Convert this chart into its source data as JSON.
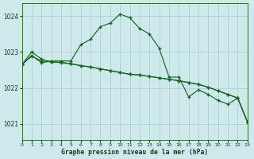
{
  "xlabel": "Graphe pression niveau de la mer (hPa)",
  "xlim": [
    0,
    23
  ],
  "ylim": [
    1020.55,
    1024.35
  ],
  "yticks": [
    1021,
    1022,
    1023,
    1024
  ],
  "xtick_labels": [
    "0",
    "1",
    "2",
    "3",
    "4",
    "5",
    "6",
    "7",
    "8",
    "9",
    "10",
    "11",
    "12",
    "13",
    "14",
    "15",
    "16",
    "17",
    "18",
    "19",
    "20",
    "21",
    "22",
    "23"
  ],
  "background_color": "#cde9ec",
  "grid_color": "#aacdd2",
  "line_color": "#1a6622",
  "s1_x": [
    0,
    1,
    2,
    3,
    4,
    5,
    6,
    7,
    8,
    9,
    10,
    11,
    12,
    13,
    14,
    15,
    16,
    17,
    18,
    19,
    20,
    21,
    22,
    23
  ],
  "s1_y": [
    1022.65,
    1022.9,
    1022.7,
    1022.75,
    1022.75,
    1022.75,
    1023.2,
    1023.35,
    1023.7,
    1023.8,
    1024.05,
    1023.95,
    1023.65,
    1023.5,
    1023.1,
    1022.3,
    1022.3,
    1021.75,
    1021.95,
    1021.82,
    1021.65,
    1021.55,
    1021.72,
    1021.05
  ],
  "s2_x": [
    0,
    1,
    2,
    3,
    4,
    5,
    6,
    7,
    8,
    9,
    10,
    11,
    12,
    13,
    14,
    15,
    16,
    17,
    18,
    19,
    20,
    21,
    22,
    23
  ],
  "s2_y": [
    1022.65,
    1022.88,
    1022.75,
    1022.72,
    1022.7,
    1022.67,
    1022.62,
    1022.58,
    1022.53,
    1022.48,
    1022.43,
    1022.38,
    1022.36,
    1022.32,
    1022.28,
    1022.24,
    1022.2,
    1022.15,
    1022.1,
    1022.02,
    1021.92,
    1021.82,
    1021.72,
    1021.05
  ],
  "s3_x": [
    0,
    1,
    2,
    3,
    4,
    5,
    6,
    7,
    8,
    9,
    10,
    11,
    12,
    13,
    14,
    15,
    16,
    17,
    18,
    19,
    20,
    21,
    22,
    23
  ],
  "s3_y": [
    1022.65,
    1023.0,
    1022.8,
    1022.72,
    1022.72,
    1022.67,
    1022.62,
    1022.58,
    1022.53,
    1022.48,
    1022.43,
    1022.38,
    1022.36,
    1022.32,
    1022.28,
    1022.24,
    1022.2,
    1022.15,
    1022.1,
    1022.02,
    1021.92,
    1021.82,
    1021.72,
    1021.05
  ]
}
